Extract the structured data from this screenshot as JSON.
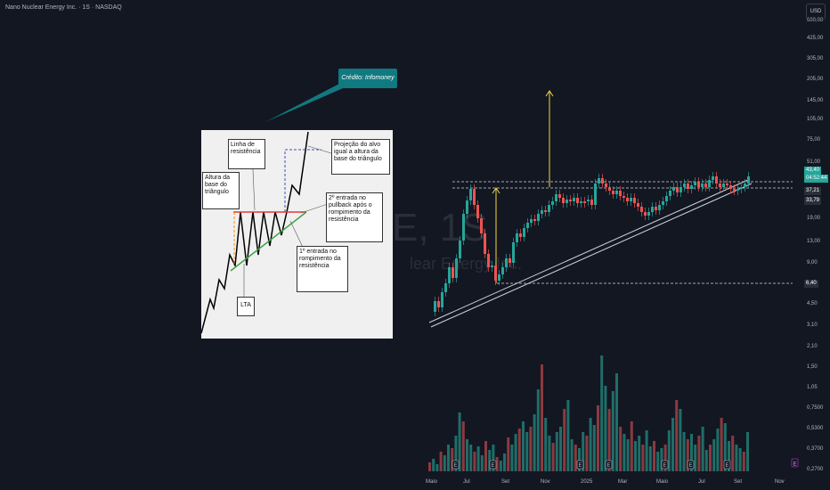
{
  "header": {
    "title": "Nano Nuclear Energy Inc. · 1S · NASDAQ",
    "currency_button": "USD"
  },
  "watermark": {
    "ticker": "E, 1S",
    "name": "lear Energy Inc."
  },
  "annotation": {
    "credit": "Crédito: Infomoney"
  },
  "inset": {
    "resistance_label": "Linha de resistência",
    "height_label": "Altura da base do triângulo",
    "projection_label": "Projeção do alvo igual a altura da base do triângulo",
    "second_entry_label": "2º entrada no pullback após o rompimento da resistência",
    "first_entry_label": "1º entrada no rompimento da resistência",
    "lta_label": "LTA"
  },
  "price_axis": {
    "ticks": [
      "425,00",
      "305,00",
      "205,00",
      "145,00",
      "105,00",
      "75,00",
      "51,00",
      "19,00",
      "13,00",
      "9,00",
      "4,50",
      "3,10",
      "2,10",
      "1,50",
      "1,05",
      "0,7500",
      "0,5300",
      "0,3700",
      "0,2700"
    ],
    "top_partial": "600,00"
  },
  "price_tags": [
    {
      "value": "43,40",
      "color": "#26a69a"
    },
    {
      "value": "04:52:44",
      "color": "#26a69a"
    },
    {
      "value": "37,21",
      "color": "#2a2e39"
    },
    {
      "value": "33,79",
      "color": "#2a2e39"
    },
    {
      "value": "6,40",
      "color": "#2a2e39"
    }
  ],
  "time_axis": [
    "Maio",
    "Jul",
    "Set",
    "Nov",
    "2025",
    "Mar",
    "Maio",
    "Jul",
    "Set",
    "Nov"
  ],
  "event_markers": [
    "E",
    "E",
    "E",
    "E",
    "E",
    "E",
    "E",
    "E"
  ],
  "colors": {
    "up": "#26a69a",
    "down": "#ef5350",
    "vol_up": "#1f6e69",
    "vol_down": "#8b3a3f",
    "arrow": "#f5d442",
    "accent": "#107a80"
  }
}
